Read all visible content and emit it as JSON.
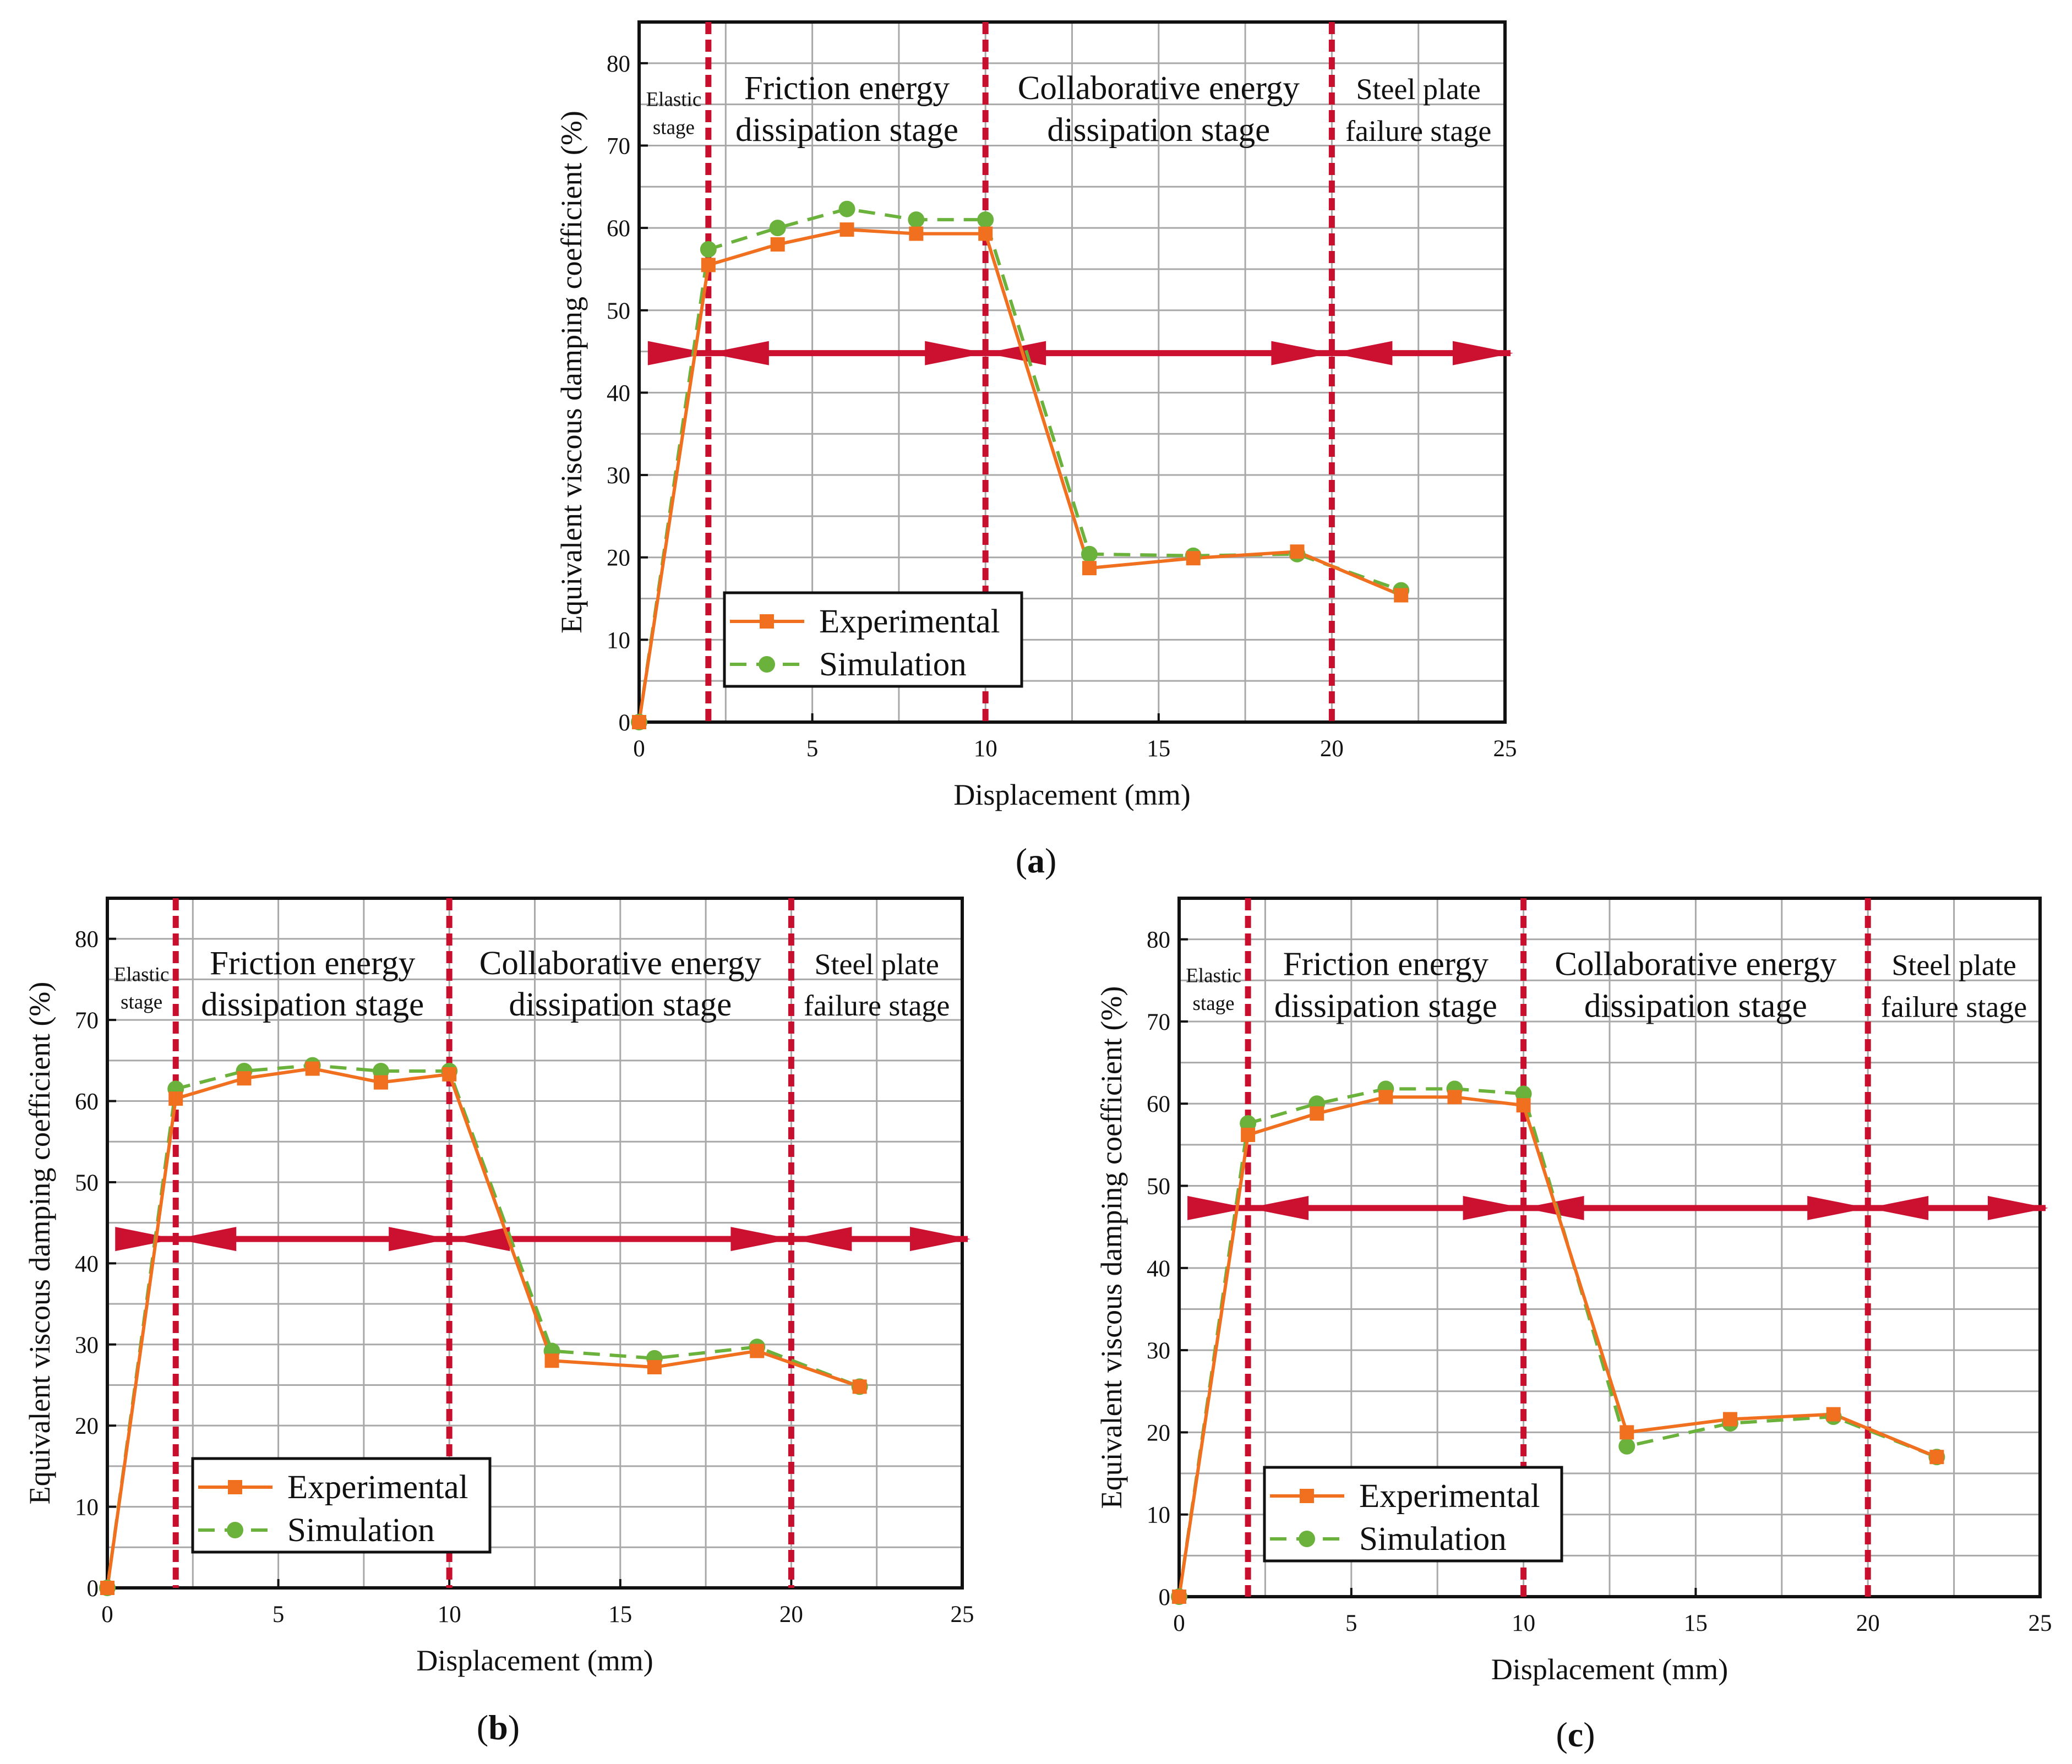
{
  "colors": {
    "experimental": "#f07020",
    "simulation": "#6ab23c",
    "boundary": "#c8102e",
    "arrow": "#cc1030",
    "grid": "#a9a9a9",
    "frame": "#111111"
  },
  "chart_data": [
    {
      "type": "line",
      "caption": {
        "open": "(",
        "letter": "a",
        "close": ")"
      },
      "xlabel": "Displacement (mm)",
      "ylabel": "Equivalent viscous damping coefficient (%)",
      "xlim": [
        0,
        25
      ],
      "ylim": [
        0,
        85
      ],
      "xticks": [
        0,
        5,
        10,
        15,
        20,
        25
      ],
      "yticks": [
        0,
        10,
        20,
        30,
        40,
        50,
        60,
        70,
        80
      ],
      "grid": true,
      "legend": {
        "placement": "bottom-left",
        "entries": [
          "Experimental",
          "Simulation"
        ]
      },
      "series": [
        {
          "name": "Experimental",
          "x": [
            0,
            2,
            4,
            6,
            8,
            10,
            13,
            16,
            19,
            22
          ],
          "values": [
            0,
            55.5,
            58.0,
            59.8,
            59.3,
            59.3,
            18.7,
            19.9,
            20.7,
            15.4
          ]
        },
        {
          "name": "Simulation",
          "x": [
            0,
            2,
            4,
            6,
            8,
            10,
            13,
            16,
            19,
            22
          ],
          "values": [
            0,
            57.4,
            60.0,
            62.3,
            61.0,
            61.0,
            20.4,
            20.2,
            20.4,
            16.0
          ]
        }
      ],
      "stage_boundaries": [
        2,
        10,
        20
      ],
      "threshold_line": 44.8,
      "stages": [
        {
          "lines": [
            "Elastic",
            "stage"
          ]
        },
        {
          "lines": [
            "Friction energy",
            "dissipation stage"
          ]
        },
        {
          "lines": [
            "Collaborative energy",
            "dissipation stage"
          ]
        },
        {
          "lines": [
            "Steel plate",
            "failure stage"
          ]
        }
      ]
    },
    {
      "type": "line",
      "caption": {
        "open": "(",
        "letter": "b",
        "close": ")"
      },
      "xlabel": "Displacement (mm)",
      "ylabel": "Equivalent viscous damping coefficient (%)",
      "xlim": [
        0,
        25
      ],
      "ylim": [
        0,
        85
      ],
      "xticks": [
        0,
        5,
        10,
        15,
        20,
        25
      ],
      "yticks": [
        0,
        10,
        20,
        30,
        40,
        50,
        60,
        70,
        80
      ],
      "grid": true,
      "legend": {
        "placement": "bottom-left",
        "entries": [
          "Experimental",
          "Simulation"
        ]
      },
      "series": [
        {
          "name": "Experimental",
          "x": [
            0,
            2,
            4,
            6,
            8,
            10,
            13,
            16,
            19,
            22
          ],
          "values": [
            0,
            60.3,
            62.8,
            64.0,
            62.3,
            63.3,
            28.0,
            27.2,
            29.2,
            24.8
          ]
        },
        {
          "name": "Simulation",
          "x": [
            0,
            2,
            4,
            6,
            8,
            10,
            13,
            16,
            19,
            22
          ],
          "values": [
            0,
            61.5,
            63.7,
            64.4,
            63.7,
            63.7,
            29.2,
            28.3,
            29.7,
            24.8
          ]
        }
      ],
      "stage_boundaries": [
        2,
        10,
        20
      ],
      "threshold_line": 43.0,
      "stages": [
        {
          "lines": [
            "Elastic",
            "stage"
          ]
        },
        {
          "lines": [
            "Friction energy",
            "dissipation stage"
          ]
        },
        {
          "lines": [
            "Collaborative energy",
            "dissipation stage"
          ]
        },
        {
          "lines": [
            "Steel plate",
            "failure stage"
          ]
        }
      ]
    },
    {
      "type": "line",
      "caption": {
        "open": "(",
        "letter": "c",
        "close": ")"
      },
      "xlabel": "Displacement (mm)",
      "ylabel": "Equivalent viscous damping coefficient (%)",
      "xlim": [
        0,
        25
      ],
      "ylim": [
        0,
        85
      ],
      "xticks": [
        0,
        5,
        10,
        15,
        20,
        25
      ],
      "yticks": [
        0,
        10,
        20,
        30,
        40,
        50,
        60,
        70,
        80
      ],
      "grid": true,
      "legend": {
        "placement": "bottom-left",
        "entries": [
          "Experimental",
          "Simulation"
        ]
      },
      "series": [
        {
          "name": "Experimental",
          "x": [
            0,
            2,
            4,
            6,
            8,
            10,
            13,
            16,
            19,
            22
          ],
          "values": [
            0,
            56.2,
            58.8,
            60.8,
            60.8,
            59.8,
            20.0,
            21.6,
            22.2,
            17.0
          ]
        },
        {
          "name": "Simulation",
          "x": [
            0,
            2,
            4,
            6,
            8,
            10,
            13,
            16,
            19,
            22
          ],
          "values": [
            0,
            57.6,
            60.0,
            61.8,
            61.8,
            61.2,
            18.3,
            21.1,
            21.9,
            17.0
          ]
        }
      ],
      "stage_boundaries": [
        2,
        10,
        20
      ],
      "threshold_line": 47.3,
      "stages": [
        {
          "lines": [
            "Elastic",
            "stage"
          ]
        },
        {
          "lines": [
            "Friction energy",
            "dissipation stage"
          ]
        },
        {
          "lines": [
            "Collaborative energy",
            "dissipation stage"
          ]
        },
        {
          "lines": [
            "Steel plate",
            "failure stage"
          ]
        }
      ]
    }
  ]
}
